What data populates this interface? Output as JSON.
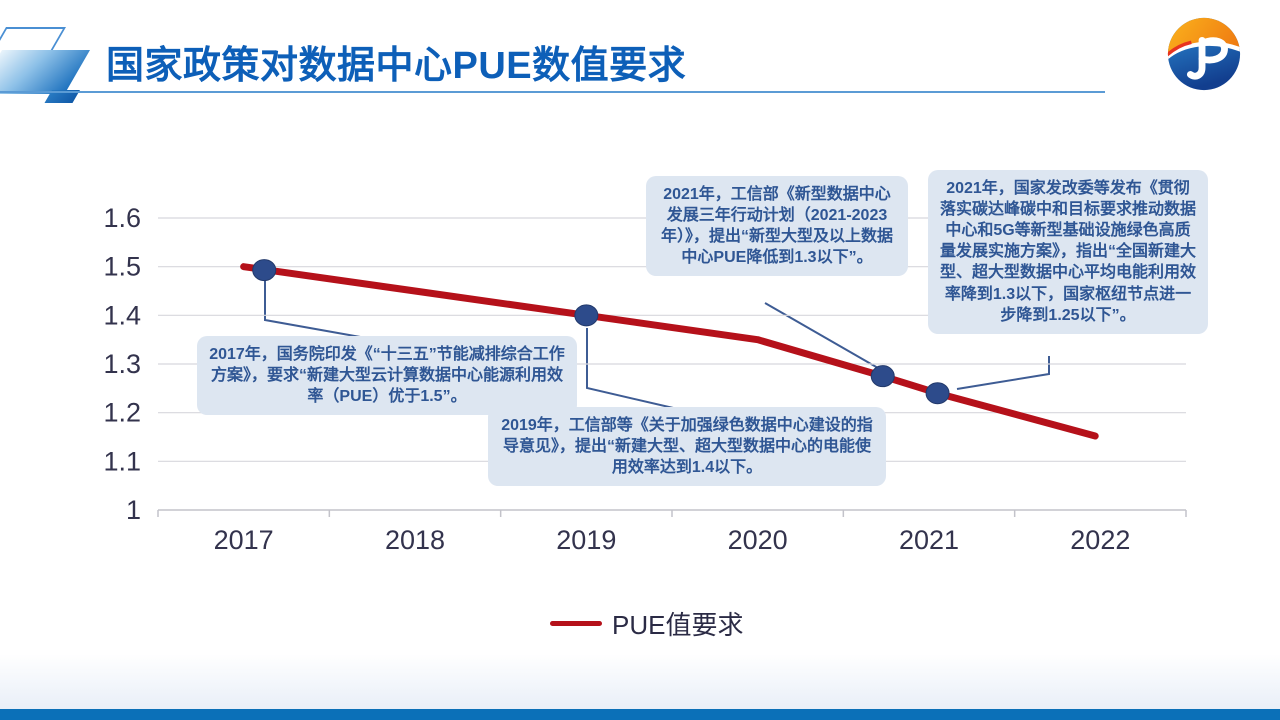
{
  "header": {
    "title": "国家政策对数据中心PUE数值要求"
  },
  "colors": {
    "title_blue": "#0d5fb8",
    "line_red": "#b5111a",
    "marker_navy": "#2d4b8b",
    "callout_bg": "#dde6f1",
    "callout_text": "#2f5694",
    "footer_bar": "#0b70b8",
    "header_rule": "#5b9bd5"
  },
  "chart_data": {
    "type": "line",
    "title": "",
    "xlabel": "",
    "ylabel": "",
    "x_ticks": [
      "2017",
      "2018",
      "2019",
      "2020",
      "2021",
      "2022"
    ],
    "y_ticks": [
      "1",
      "1.1",
      "1.2",
      "1.3",
      "1.4",
      "1.5",
      "1.6"
    ],
    "xlim": [
      2016.5,
      2022.5
    ],
    "ylim": [
      1.0,
      1.6
    ],
    "grid": true,
    "legend": {
      "position": "bottom",
      "entries": [
        {
          "label": "PUE值要求",
          "color": "#b5111a"
        }
      ]
    },
    "series": [
      {
        "name": "PUE值要求",
        "color": "#b5111a",
        "marker_color": "#2d4b8b",
        "points": [
          [
            2017,
            1.5
          ],
          [
            2018,
            1.45
          ],
          [
            2019,
            1.4
          ],
          [
            2020,
            1.35
          ],
          [
            2020.73,
            1.275
          ],
          [
            2021.05,
            1.24
          ],
          [
            2021.97,
            1.152
          ]
        ],
        "markers": [
          [
            2017.12,
            1.493
          ],
          [
            2019,
            1.4
          ],
          [
            2020.73,
            1.275
          ],
          [
            2021.05,
            1.24
          ]
        ]
      }
    ],
    "annotations": [
      {
        "id": "policy-2017",
        "text": "2017年，国务院印发《“十三五”节能减排综合工作方案》，要求“新建大型云计算数据中心能源利用效率（PUE）优于1.5”。"
      },
      {
        "id": "policy-2019",
        "text": "2019年，工信部等《关于加强绿色数据中心建设的指导意见》，提出“新建大型、超大型数据中心的电能使用效率达到1.4以下。"
      },
      {
        "id": "policy-2021-miit",
        "text": "2021年，工信部《新型数据中心发展三年行动计划（2021-2023年）》，提出“新型大型及以上数据中心PUE降低到1.3以下”。"
      },
      {
        "id": "policy-2021-ndrc",
        "text": "2021年，国家发改委等发布《贯彻落实碳达峰碳中和目标要求推动数据中心和5G等新型基础设施绿色高质量发展实施方案》，指出“全国新建大型、超大型数据中心平均电能利用效率降到1.3以下，国家枢纽节点进一步降到1.25以下”。"
      }
    ]
  }
}
